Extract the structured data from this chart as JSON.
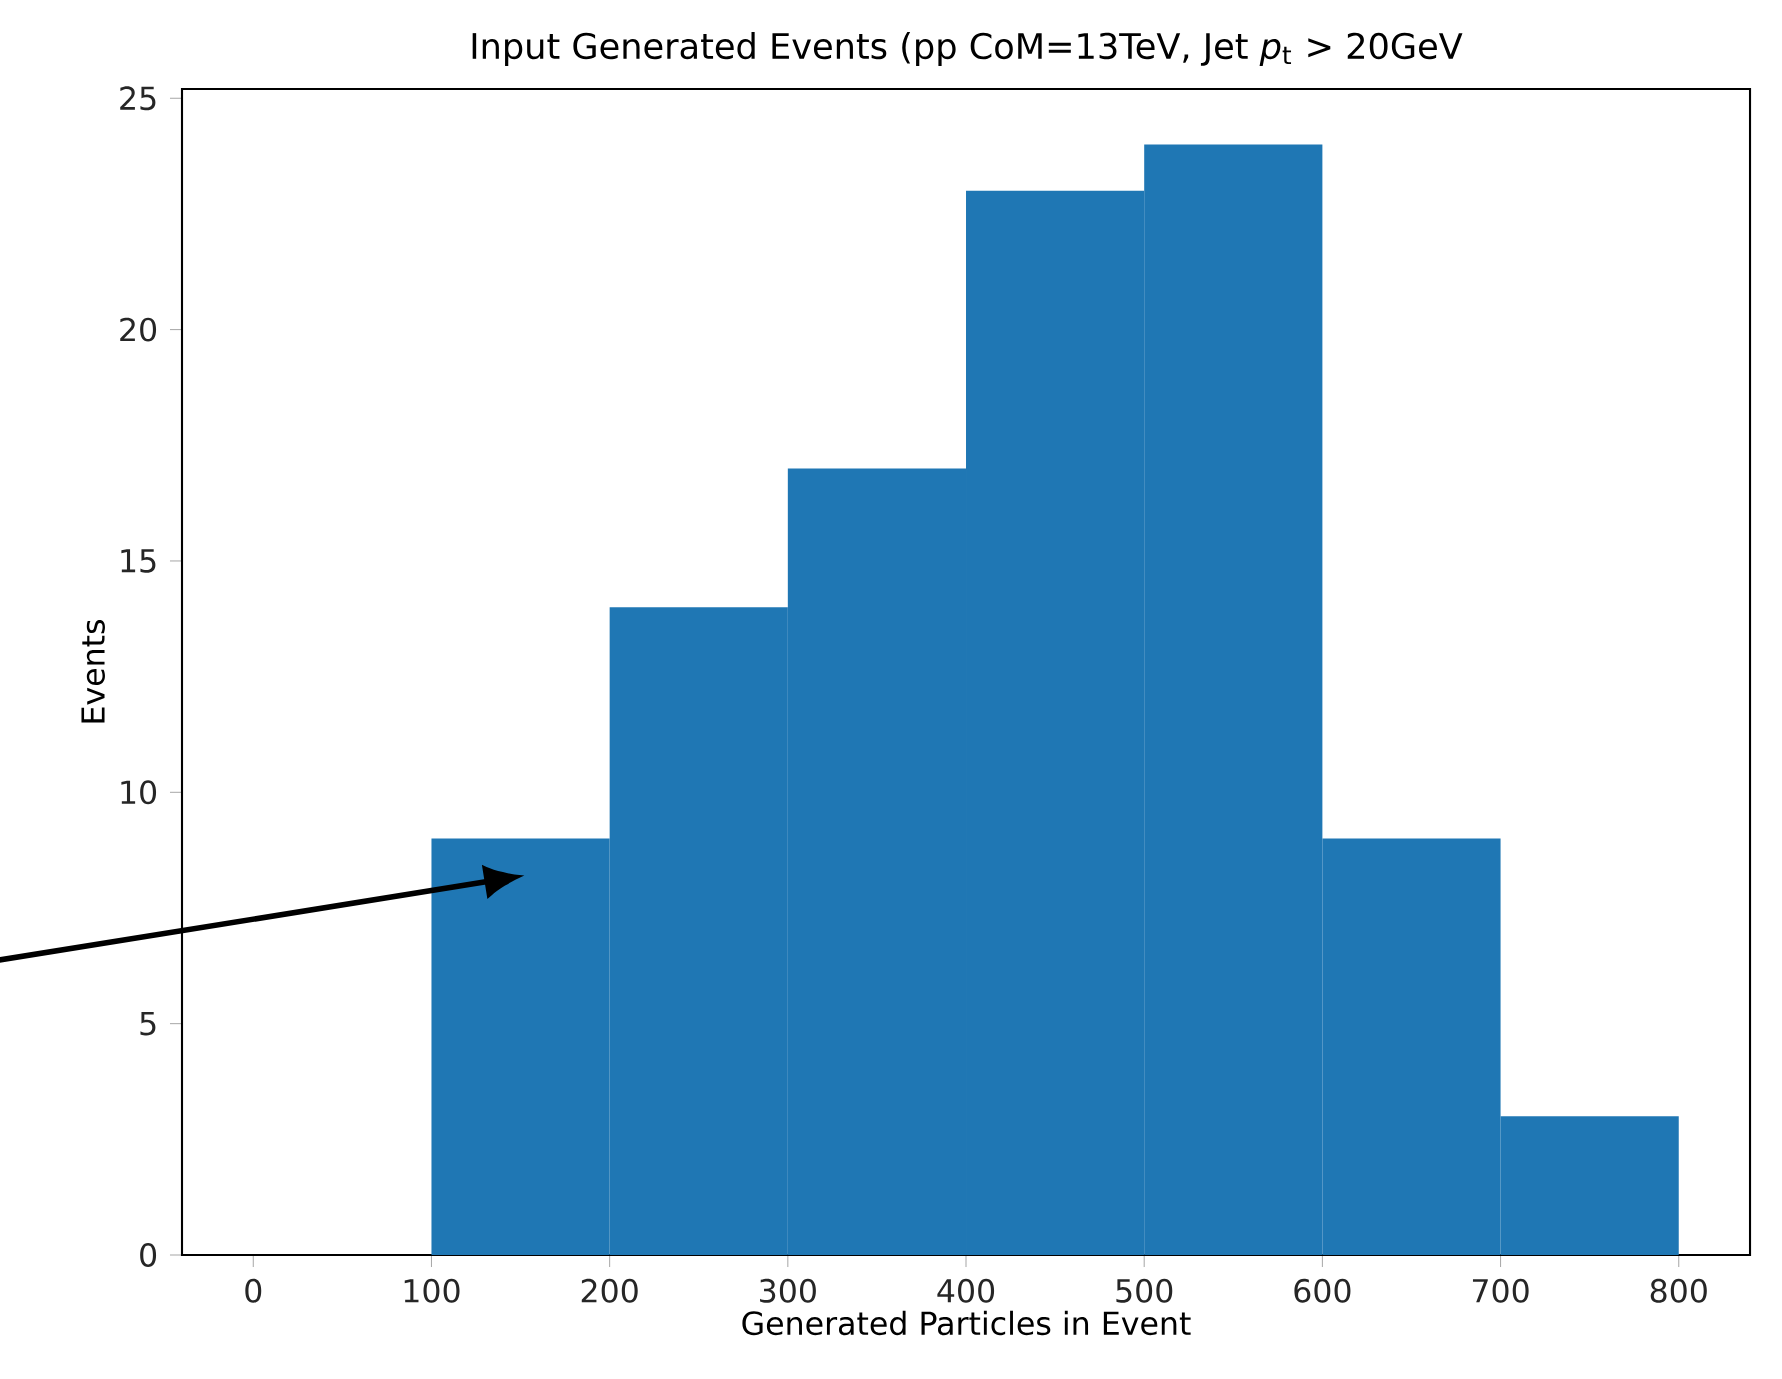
{
  "chart_data": {
    "type": "histogram",
    "title": "Input Generated Events (pp CoM=13TeV, Jet *p*$_{t}$ > 20GeV",
    "xlabel": "Generated Particles in Event",
    "ylabel": "Events",
    "bins": [
      0,
      100,
      200,
      300,
      400,
      500,
      600,
      700,
      800
    ],
    "values": [
      0,
      9,
      14,
      17,
      23,
      24,
      9,
      3
    ],
    "color": "#1f77b4",
    "xlim": [
      -40,
      840
    ],
    "ylim": [
      0,
      25.2
    ],
    "xticks": [
      0,
      100,
      200,
      300,
      400,
      500,
      600,
      700,
      800
    ],
    "yticks": [
      0,
      5,
      10,
      15,
      20,
      25
    ],
    "grid": false
  }
}
